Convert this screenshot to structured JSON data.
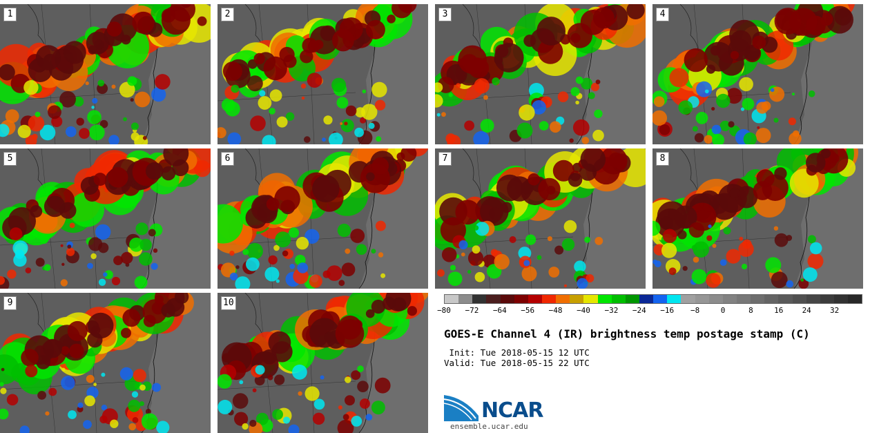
{
  "panels": [
    "1",
    "2",
    "3",
    "4",
    "5",
    "6",
    "7",
    "8",
    "9",
    "10"
  ],
  "colorbar": {
    "colors": [
      "#c8c8c8",
      "#8c8c8c",
      "#323232",
      "#4b1e1e",
      "#5a0a0a",
      "#7d0000",
      "#b40000",
      "#f02800",
      "#f06e00",
      "#c8a000",
      "#e6e600",
      "#00e600",
      "#00be00",
      "#009600",
      "#0a2896",
      "#1464f0",
      "#00e6f0",
      "#a0a0a0",
      "#969696",
      "#8c8c8c",
      "#828282",
      "#787878",
      "#6e6e6e",
      "#646464",
      "#5a5a5a",
      "#505050",
      "#464646",
      "#3c3c3c",
      "#323232",
      "#282828"
    ],
    "ticks": [
      "−80",
      "−72",
      "−64",
      "−56",
      "−48",
      "−40",
      "−32",
      "−24",
      "−16",
      "−8",
      "0",
      "8",
      "16",
      "24",
      "32"
    ]
  },
  "title": "GOES-E Channel 4 (IR) brightness temp postage stamp (C)",
  "init": " Init: Tue 2018-05-15 12 UTC",
  "valid": "Valid: Tue 2018-05-15 22 UTC",
  "logo": "NCAR",
  "url": "ensemble.ucar.edu"
}
